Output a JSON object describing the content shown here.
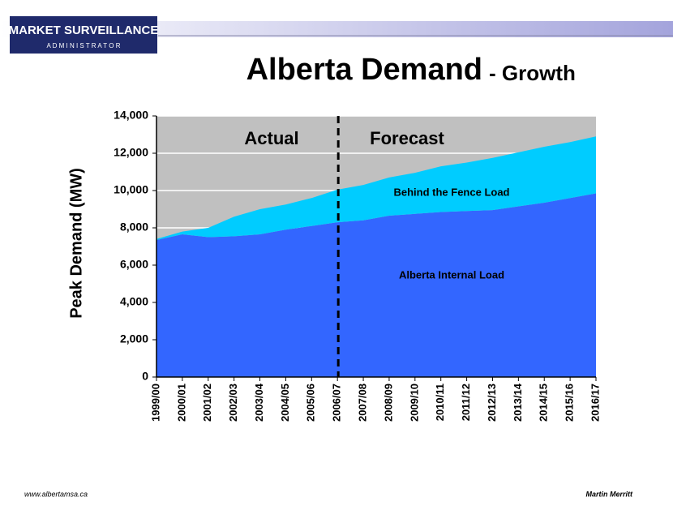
{
  "slide": {
    "logo_top": "MARKET SURVEILLANCE",
    "logo_bottom": "A D M I N I S T R A T O R",
    "title_main": "Alberta Demand",
    "title_sub": "- Growth",
    "footer_left": "www.albertamsa.ca",
    "footer_right": "Martin Merritt"
  },
  "chart_data": {
    "type": "stacked_area",
    "y_label": "Peak Demand  (MW)",
    "categories": [
      "1999/00",
      "2000/01",
      "2001/02",
      "2002/03",
      "2003/04",
      "2004/05",
      "2005/06",
      "2006/07",
      "2007/08",
      "2008/09",
      "2009/10",
      "2010/11",
      "2011/12",
      "2012/13",
      "2013/14",
      "2014/15",
      "2015/16",
      "2016/17"
    ],
    "series": [
      {
        "name": "Alberta Internal Load",
        "color": "#3366ff",
        "values": [
          7350,
          7650,
          7500,
          7550,
          7650,
          7900,
          8100,
          8300,
          8400,
          8650,
          8750,
          8850,
          8900,
          8950,
          9150,
          9350,
          9600,
          9850
        ]
      },
      {
        "name": "Behind the Fence Load",
        "color": "#00ccff",
        "values": [
          50,
          150,
          500,
          1050,
          1350,
          1350,
          1500,
          1750,
          1900,
          2050,
          2200,
          2450,
          2600,
          2800,
          2900,
          3000,
          3000,
          3050
        ]
      }
    ],
    "annotations": [
      "Actual",
      "Forecast"
    ],
    "ylim": [
      0,
      14000
    ],
    "yticks": [
      0,
      {
        "value": 2000,
        "label": "2,000"
      },
      {
        "value": 4000,
        "label": "4,000"
      },
      {
        "value": 6000,
        "label": "6,000"
      },
      {
        "value": 8000,
        "label": "8,000"
      },
      {
        "value": 10000,
        "label": "10,000"
      },
      {
        "value": 12000,
        "label": "12,000"
      },
      {
        "value": 14000,
        "label": "14,000"
      }
    ],
    "grid": true,
    "plot_background": "#c0c0c0",
    "grid_color": "#ffffff"
  }
}
